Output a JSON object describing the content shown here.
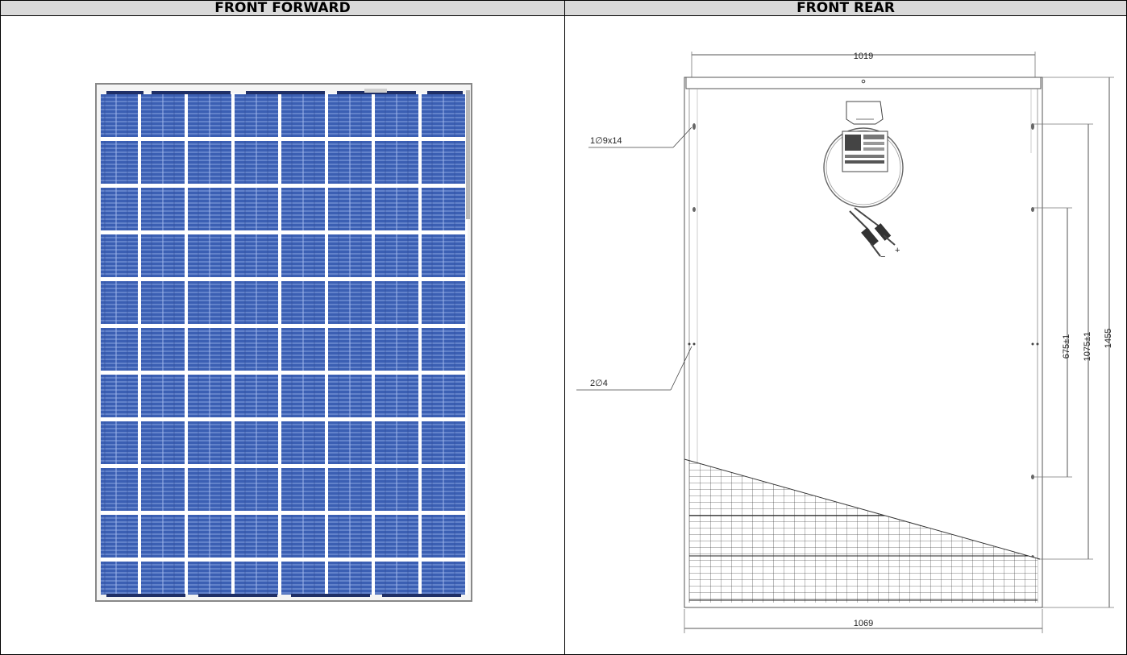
{
  "headers": {
    "left": "FRONT FORWARD",
    "right": "FRONT REAR"
  },
  "colors": {
    "header_bg": "#d9d9d9",
    "cell_blue": "#3b5fb3",
    "cell_line": "#6f8fd6",
    "frame": "#9a9a9a",
    "busbar": "#1f2f66"
  },
  "front_panel": {
    "cell_columns": 8,
    "cell_rows": 11
  },
  "rear_drawing": {
    "dim_top_width": "1019",
    "dim_bottom_width": "1069",
    "dim_height": "1455",
    "dim_mount_outer": "1075±1",
    "dim_mount_inner": "675±1",
    "label_slot": "1∅9x14",
    "label_holes": "2∅4",
    "plus_sign": "+",
    "minus_sign": "−"
  }
}
